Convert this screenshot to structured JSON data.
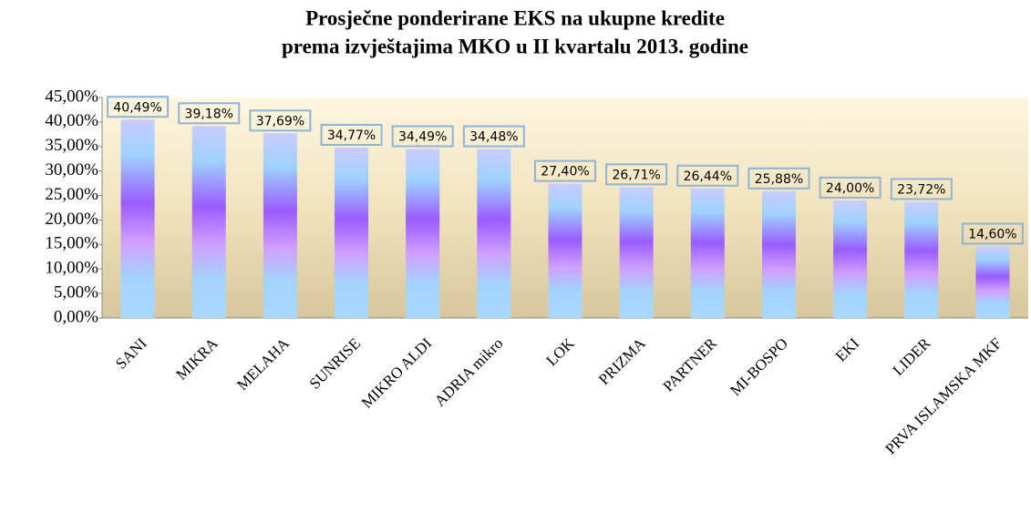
{
  "chart_data": {
    "type": "bar",
    "title": [
      "Prosječne ponderirane EKS na ukupne kredite",
      "prema izvještajima MKO u II kvartalu 2013. godine"
    ],
    "categories": [
      "SANI",
      "MIKRA",
      "MELAHA",
      "SUNRISE",
      "MIKRO ALDI",
      "ADRIA mikro",
      "LOK",
      "PRIZMA",
      "PARTNER",
      "MI-BOSPO",
      "EKI",
      "LIDER",
      "PRVA ISLAMSKA MKF"
    ],
    "values": [
      40.49,
      39.18,
      37.69,
      34.77,
      34.49,
      34.48,
      27.4,
      26.71,
      26.44,
      25.88,
      24.0,
      23.72,
      14.6
    ],
    "value_labels": [
      "40,49%",
      "39,18%",
      "37,69%",
      "34,77%",
      "34,49%",
      "34,48%",
      "27,40%",
      "26,71%",
      "26,44%",
      "25,88%",
      "24,00%",
      "23,72%",
      "14,60%"
    ],
    "ylim": [
      0,
      45
    ],
    "yticks": [
      {
        "value": 0,
        "label": "0,00%"
      },
      {
        "value": 5,
        "label": "5,00%"
      },
      {
        "value": 10,
        "label": "10,00%"
      },
      {
        "value": 15,
        "label": "15,00%"
      },
      {
        "value": 20,
        "label": "20,00%"
      },
      {
        "value": 25,
        "label": "25,00%"
      },
      {
        "value": 30,
        "label": "30,00%"
      },
      {
        "value": 35,
        "label": "35,00%"
      },
      {
        "value": 40,
        "label": "40,00%"
      },
      {
        "value": 45,
        "label": "45,00%"
      }
    ],
    "grid": false
  }
}
